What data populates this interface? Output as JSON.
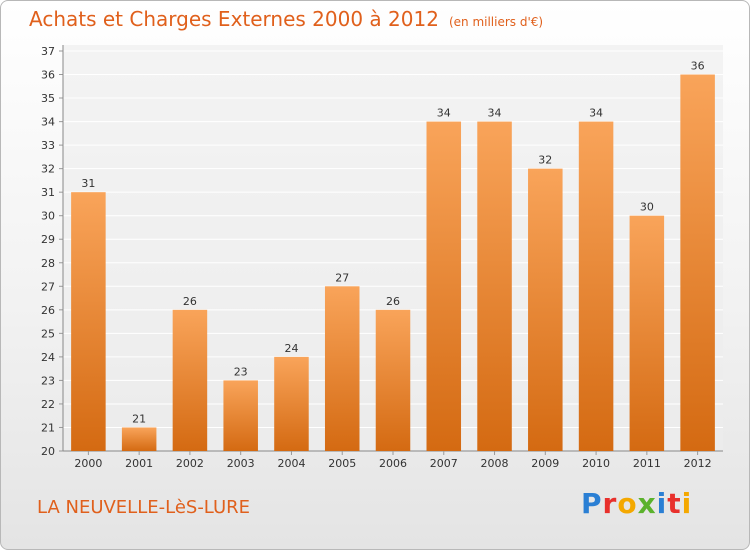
{
  "chart_data": {
    "type": "bar",
    "title": "Achats et Charges Externes 2000 à 2012",
    "subtitle": "(en milliers d'€)",
    "categories": [
      "2000",
      "2001",
      "2002",
      "2003",
      "2004",
      "2005",
      "2006",
      "2007",
      "2008",
      "2009",
      "2010",
      "2011",
      "2012"
    ],
    "values": [
      31,
      21,
      26,
      23,
      24,
      27,
      26,
      34,
      34,
      32,
      34,
      30,
      36
    ],
    "ylim": [
      20,
      37
    ],
    "yticks": [
      20,
      21,
      22,
      23,
      24,
      25,
      26,
      27,
      28,
      29,
      30,
      31,
      32,
      33,
      34,
      35,
      36,
      37
    ],
    "grid": true,
    "bar_color_top": "#f9a45a",
    "bar_color_bottom": "#d46a12"
  },
  "footer": {
    "place": "LA NEUVELLE-LèS-LURE",
    "brand_letters": [
      "P",
      "r",
      "o",
      "x",
      "i",
      "t",
      "i"
    ],
    "brand_colors": [
      "#2a7fd4",
      "#e8302c",
      "#f4a800",
      "#5bb22c",
      "#2a7fd4",
      "#e8302c",
      "#f4a800"
    ]
  }
}
